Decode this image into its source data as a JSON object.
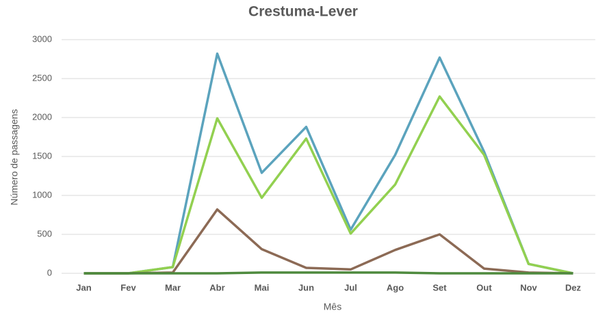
{
  "chart_data": {
    "type": "line",
    "title": "Crestuma-Lever",
    "x_label": "Mês",
    "y_label": "Número de passagens",
    "categories": [
      "Jan",
      "Fev",
      "Mar",
      "Abr",
      "Mai",
      "Jun",
      "Jul",
      "Ago",
      "Set",
      "Out",
      "Nov",
      "Dez"
    ],
    "series": [
      {
        "color": "#5ba3bd",
        "values": [
          0,
          0,
          80,
          2820,
          1290,
          1880,
          560,
          1520,
          2770,
          1560,
          120,
          0
        ]
      },
      {
        "color": "#92d050",
        "values": [
          0,
          0,
          80,
          1990,
          970,
          1730,
          510,
          1140,
          2270,
          1520,
          120,
          0
        ]
      },
      {
        "color": "#8c6a55",
        "values": [
          0,
          0,
          10,
          820,
          310,
          70,
          50,
          300,
          500,
          60,
          10,
          0
        ]
      },
      {
        "color": "#4e8a3e",
        "values": [
          0,
          0,
          0,
          0,
          10,
          10,
          10,
          10,
          0,
          0,
          0,
          0
        ]
      }
    ],
    "ylim": [
      0,
      3000
    ],
    "yticks": [
      0,
      500,
      1000,
      1500,
      2000,
      2500,
      3000
    ],
    "grid": true
  }
}
